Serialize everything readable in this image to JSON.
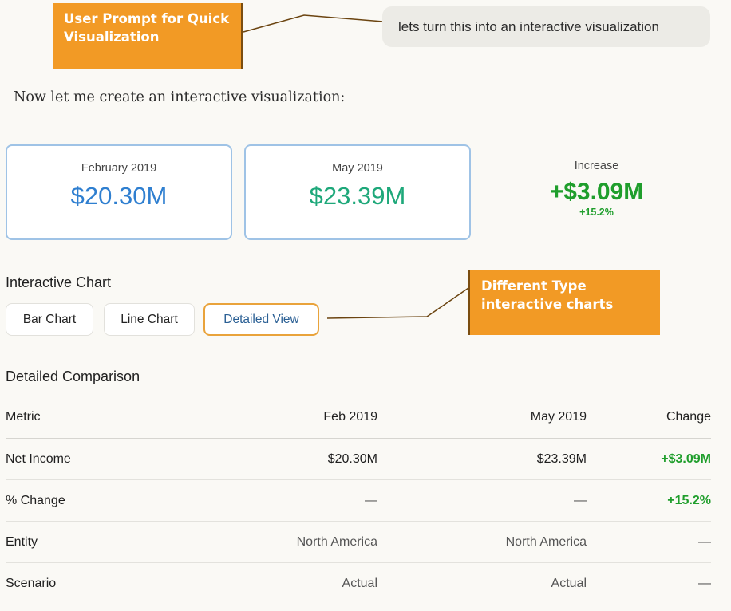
{
  "annotations": {
    "prompt_callout": "User Prompt for Quick Visualization",
    "charts_callout": "Different Type interactive charts",
    "callout_color": "#f29a25"
  },
  "chat": {
    "user_message": "lets turn this into an interactive visualization",
    "assistant_intro": "Now let me create an interactive visualization:"
  },
  "summary": {
    "feb": {
      "label": "February 2019",
      "value": "$20.30M",
      "color": "#2f7fd0"
    },
    "may": {
      "label": "May 2019",
      "value": "$23.39M",
      "color": "#1ea87a"
    },
    "increase": {
      "label": "Increase",
      "value": "+$3.09M",
      "percent": "+15.2%",
      "color": "#1f9e2c"
    }
  },
  "chart_section": {
    "title": "Interactive Chart",
    "tabs": [
      {
        "label": "Bar Chart",
        "active": false
      },
      {
        "label": "Line Chart",
        "active": false
      },
      {
        "label": "Detailed View",
        "active": true
      }
    ]
  },
  "comparison": {
    "title": "Detailed Comparison",
    "columns": [
      "Metric",
      "Feb 2019",
      "May 2019",
      "Change"
    ],
    "rows": [
      [
        "Net Income",
        "$20.30M",
        "$23.39M",
        "+$3.09M"
      ],
      [
        "% Change",
        "—",
        "—",
        "+15.2%"
      ],
      [
        "Entity",
        "North America",
        "North America",
        "—"
      ],
      [
        "Scenario",
        "Actual",
        "Actual",
        "—"
      ]
    ]
  }
}
